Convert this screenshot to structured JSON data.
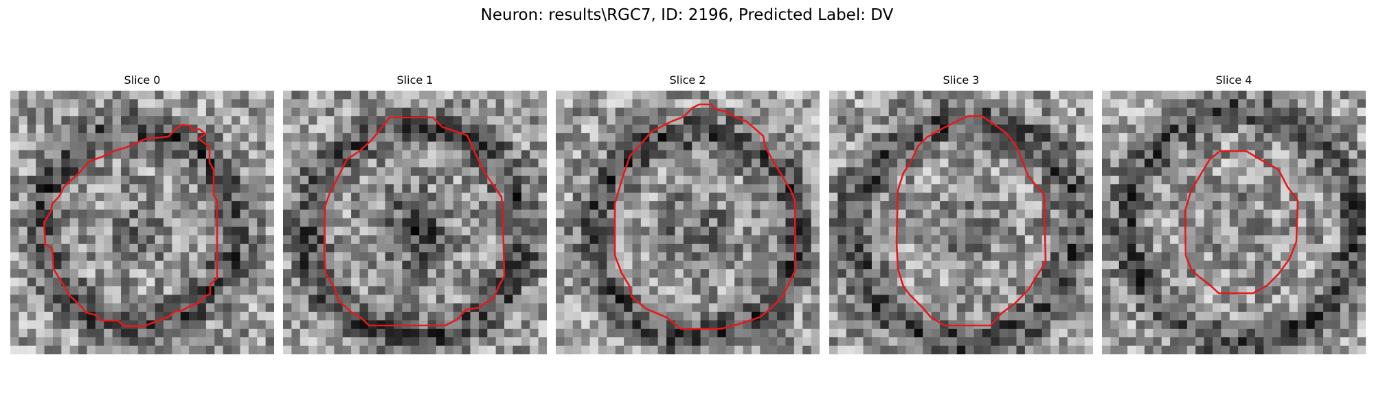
{
  "figure": {
    "title": "Neuron: results\\RGC7, ID: 2196, Predicted Label: DV"
  },
  "slices": [
    {
      "title": "Slice 0"
    },
    {
      "title": "Slice 1"
    },
    {
      "title": "Slice 2"
    },
    {
      "title": "Slice 3"
    },
    {
      "title": "Slice 4"
    }
  ],
  "colors": {
    "contour": "#e31a1c",
    "background": "#ffffff"
  }
}
